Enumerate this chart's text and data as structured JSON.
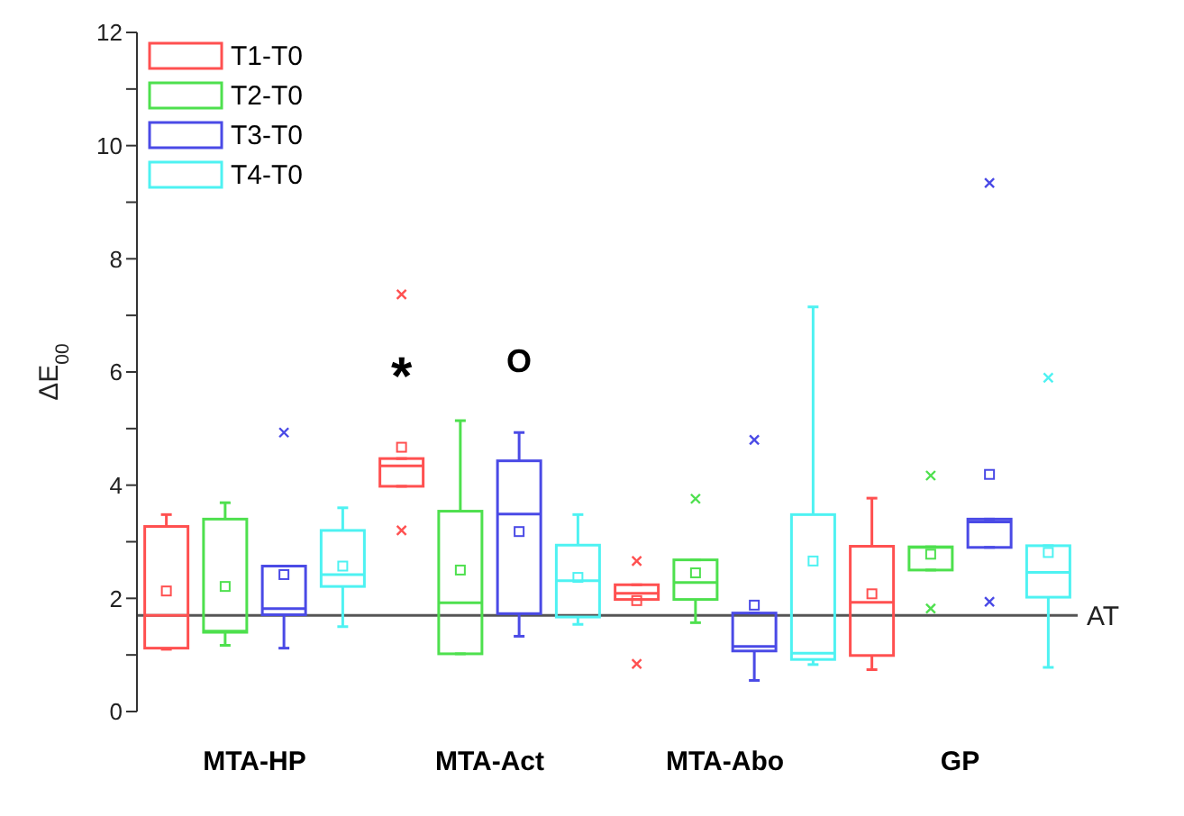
{
  "chart_data": {
    "type": "box",
    "ylabel": "ΔE$_{00}$",
    "categories": [
      "MTA-HP",
      "MTA-Act",
      "MTA-Abo",
      "GP"
    ],
    "ylim": [
      0,
      12
    ],
    "yticks": [
      0,
      {
        "value": 1,
        "label": null
      },
      2,
      {
        "value": 3,
        "label": null
      },
      4,
      {
        "value": 5,
        "label": null
      },
      6,
      {
        "value": 7,
        "label": null
      },
      8,
      {
        "value": 9,
        "label": null
      },
      10,
      {
        "value": 11,
        "label": null
      },
      12
    ],
    "legend": "top left",
    "grid": false,
    "ref_lines": [
      {
        "axis": "y",
        "value": 1.7,
        "label": "AT",
        "color": "#555555"
      }
    ],
    "annotations": [
      "*",
      "O"
    ],
    "series": [
      {
        "name": "T1-T0",
        "color": "#ff5050",
        "boxes": [
          {
            "low": 1.1,
            "q1": 1.12,
            "median": 1.7,
            "q3": 3.27,
            "high": 3.48,
            "mean": 2.13
          },
          {
            "low": 3.98,
            "q1": 3.98,
            "median": 4.34,
            "q3": 4.47,
            "high": 4.47,
            "mean": 4.67,
            "outliers": [
              7.37,
              3.2
            ]
          },
          {
            "low": 1.98,
            "q1": 1.98,
            "median": 2.09,
            "q3": 2.24,
            "high": 2.24,
            "mean": 1.96,
            "outliers": [
              2.66,
              0.84
            ]
          },
          {
            "low": 0.74,
            "q1": 0.99,
            "median": 1.93,
            "q3": 2.92,
            "high": 3.77,
            "mean": 2.08
          }
        ]
      },
      {
        "name": "T2-T0",
        "color": "#4ee04e",
        "boxes": [
          {
            "low": 1.17,
            "q1": 1.4,
            "median": 1.42,
            "q3": 3.4,
            "high": 3.69,
            "mean": 2.21
          },
          {
            "low": 1.02,
            "q1": 1.02,
            "median": 1.92,
            "q3": 3.54,
            "high": 5.14,
            "mean": 2.5
          },
          {
            "low": 1.57,
            "q1": 1.98,
            "median": 2.28,
            "q3": 2.68,
            "high": 2.68,
            "mean": 2.45,
            "outliers": [
              3.76
            ]
          },
          {
            "low": 2.5,
            "q1": 2.5,
            "median": 2.9,
            "q3": 2.91,
            "high": 2.91,
            "mean": 2.78,
            "outliers": [
              4.17,
              1.82
            ]
          }
        ]
      },
      {
        "name": "T3-T0",
        "color": "#4a4ae6",
        "boxes": [
          {
            "low": 1.12,
            "q1": 1.71,
            "median": 1.82,
            "q3": 2.57,
            "high": 2.57,
            "mean": 2.42,
            "outliers": [
              4.93
            ]
          },
          {
            "low": 1.33,
            "q1": 1.73,
            "median": 3.49,
            "q3": 4.43,
            "high": 4.93,
            "mean": 3.18
          },
          {
            "low": 0.55,
            "q1": 1.07,
            "median": 1.15,
            "q3": 1.74,
            "high": 1.74,
            "mean": 1.88,
            "outliers": [
              4.8
            ]
          },
          {
            "low": 2.9,
            "q1": 2.9,
            "median": 3.35,
            "q3": 3.4,
            "high": 3.4,
            "mean": 4.19,
            "outliers": [
              9.34,
              1.94
            ]
          }
        ]
      },
      {
        "name": "T4-T0",
        "color": "#4ef2f2",
        "boxes": [
          {
            "low": 1.5,
            "q1": 2.21,
            "median": 2.42,
            "q3": 3.2,
            "high": 3.6,
            "mean": 2.57
          },
          {
            "low": 1.54,
            "q1": 1.67,
            "median": 2.31,
            "q3": 2.94,
            "high": 3.48,
            "mean": 2.37
          },
          {
            "low": 0.83,
            "q1": 0.92,
            "median": 1.03,
            "q3": 3.48,
            "high": 7.15,
            "mean": 2.66
          },
          {
            "low": 0.78,
            "q1": 2.02,
            "median": 2.46,
            "q3": 2.93,
            "high": 2.93,
            "mean": 2.81,
            "outliers": [
              5.9
            ]
          }
        ]
      }
    ]
  }
}
